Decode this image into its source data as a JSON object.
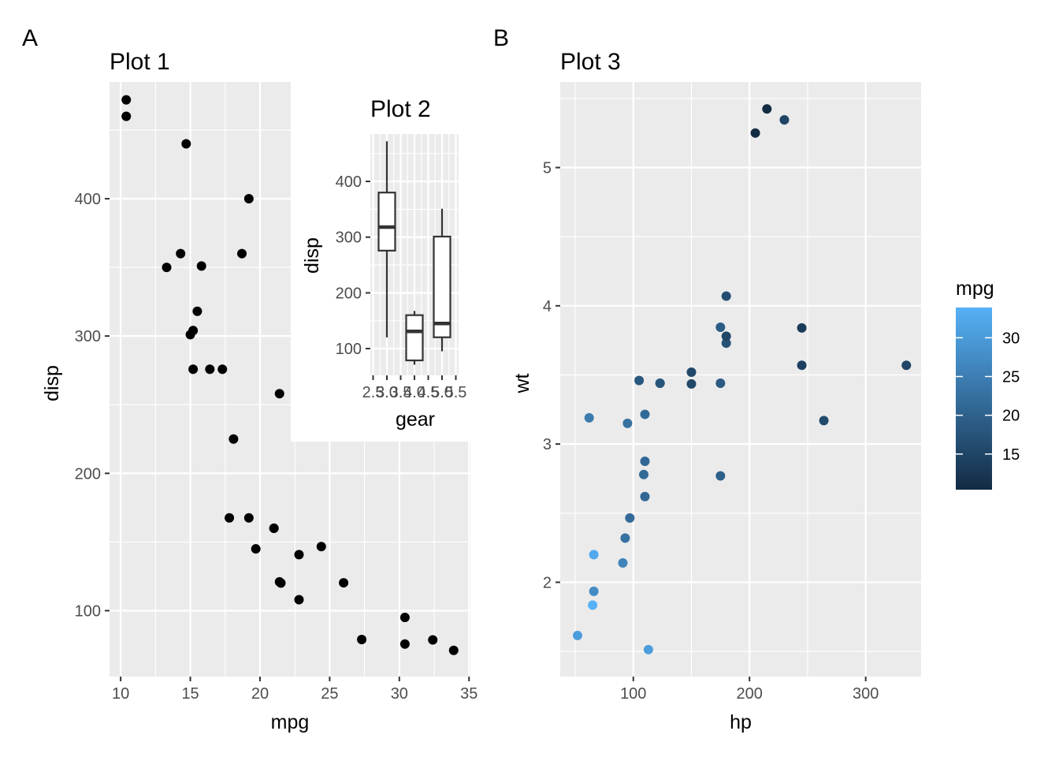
{
  "tags": {
    "a": "A",
    "b": "B"
  },
  "chart_data": [
    {
      "id": "plot1",
      "type": "scatter",
      "title": "Plot 1",
      "xlabel": "mpg",
      "ylabel": "disp",
      "xlim": [
        9.2,
        35.1
      ],
      "ylim": [
        52,
        485
      ],
      "xticks": [
        10,
        15,
        20,
        25,
        30,
        35
      ],
      "yticks": [
        100,
        200,
        300,
        400
      ],
      "grid": true,
      "point_color": "#000000",
      "points": [
        [
          21.0,
          160
        ],
        [
          21.0,
          160
        ],
        [
          22.8,
          108
        ],
        [
          21.4,
          258
        ],
        [
          18.7,
          360
        ],
        [
          18.1,
          225
        ],
        [
          14.3,
          360
        ],
        [
          24.4,
          146.7
        ],
        [
          22.8,
          140.8
        ],
        [
          19.2,
          167.6
        ],
        [
          17.8,
          167.6
        ],
        [
          16.4,
          275.8
        ],
        [
          17.3,
          275.8
        ],
        [
          15.2,
          275.8
        ],
        [
          10.4,
          472
        ],
        [
          10.4,
          460
        ],
        [
          14.7,
          440
        ],
        [
          32.4,
          78.7
        ],
        [
          30.4,
          75.7
        ],
        [
          33.9,
          71.1
        ],
        [
          21.5,
          120.1
        ],
        [
          15.5,
          318
        ],
        [
          15.2,
          304
        ],
        [
          13.3,
          350
        ],
        [
          19.2,
          400
        ],
        [
          27.3,
          79
        ],
        [
          26.0,
          120.3
        ],
        [
          30.4,
          95.1
        ],
        [
          15.8,
          351
        ],
        [
          19.7,
          145
        ],
        [
          15.0,
          301
        ],
        [
          21.4,
          121
        ]
      ]
    },
    {
      "id": "plot2",
      "type": "box",
      "title": "Plot 2",
      "xlabel": "gear",
      "ylabel": "disp",
      "xlim": [
        2.4,
        5.6
      ],
      "ylim": [
        52,
        485
      ],
      "xticks": [
        2.5,
        3.0,
        3.5,
        4.0,
        4.5,
        5.0,
        5.5
      ],
      "xtick_labels": [
        "2.5",
        "3.0",
        "3.5",
        "4.0",
        "4.5",
        "5.0",
        "5.5"
      ],
      "yticks": [
        100,
        200,
        300,
        400
      ],
      "grid": true,
      "boxes": [
        {
          "x": 3,
          "min": 120.1,
          "q1": 275.8,
          "median": 318,
          "q3": 380,
          "max": 472
        },
        {
          "x": 4,
          "min": 71.1,
          "q1": 78.85,
          "median": 130.9,
          "q3": 160,
          "max": 167.6
        },
        {
          "x": 5,
          "min": 95.1,
          "q1": 120.3,
          "median": 145,
          "q3": 301,
          "max": 351
        }
      ]
    },
    {
      "id": "plot3",
      "type": "scatter",
      "title": "Plot 3",
      "xlabel": "hp",
      "ylabel": "wt",
      "xlim": [
        37.1,
        347.7
      ],
      "ylim": [
        1.318,
        5.619
      ],
      "xticks": [
        100,
        200,
        300
      ],
      "yticks": [
        2,
        3,
        4,
        5
      ],
      "grid": true,
      "color_by": "mpg",
      "legend": {
        "title": "mpg",
        "position": "right",
        "ticks": [
          15,
          20,
          25,
          30
        ],
        "range": [
          10.4,
          33.9
        ],
        "low_color": "#132B43",
        "high_color": "#56B1F7"
      },
      "points": [
        [
          110,
          2.62,
          21.0
        ],
        [
          110,
          2.875,
          21.0
        ],
        [
          93,
          2.32,
          22.8
        ],
        [
          110,
          3.215,
          21.4
        ],
        [
          175,
          3.44,
          18.7
        ],
        [
          105,
          3.46,
          18.1
        ],
        [
          245,
          3.57,
          14.3
        ],
        [
          62,
          3.19,
          24.4
        ],
        [
          95,
          3.15,
          22.8
        ],
        [
          123,
          3.44,
          19.2
        ],
        [
          123,
          3.44,
          17.8
        ],
        [
          180,
          4.07,
          16.4
        ],
        [
          180,
          3.73,
          17.3
        ],
        [
          180,
          3.78,
          15.2
        ],
        [
          205,
          5.25,
          10.4
        ],
        [
          215,
          5.424,
          10.4
        ],
        [
          230,
          5.345,
          14.7
        ],
        [
          66,
          2.2,
          32.4
        ],
        [
          52,
          1.615,
          30.4
        ],
        [
          65,
          1.835,
          33.9
        ],
        [
          97,
          2.465,
          21.5
        ],
        [
          150,
          3.52,
          15.5
        ],
        [
          150,
          3.435,
          15.2
        ],
        [
          245,
          3.84,
          13.3
        ],
        [
          175,
          3.845,
          19.2
        ],
        [
          66,
          1.935,
          27.3
        ],
        [
          91,
          2.14,
          26.0
        ],
        [
          113,
          1.513,
          30.4
        ],
        [
          264,
          3.17,
          15.8
        ],
        [
          175,
          2.77,
          19.7
        ],
        [
          335,
          3.57,
          15.0
        ],
        [
          109,
          2.78,
          21.4
        ]
      ]
    }
  ]
}
